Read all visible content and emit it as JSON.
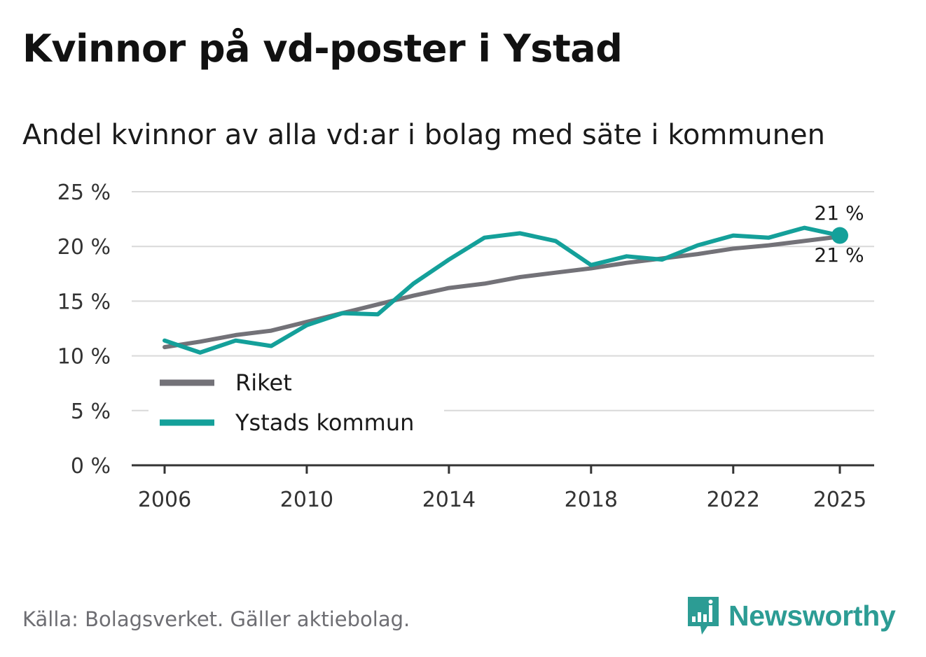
{
  "title": "Kvinnor på vd-poster i Ystad",
  "subtitle": "Andel kvinnor av alla vd:ar i bolag med säte i kommunen",
  "source": "Källa: Bolagsverket. Gäller aktiebolag.",
  "brand": {
    "name": "Newsworthy",
    "icon": "newsworthy-logo-icon"
  },
  "colors": {
    "riket": "#737278",
    "ystad": "#14a09a",
    "grid": "#d9d9d9",
    "axis": "#333333"
  },
  "chart_data": {
    "type": "line",
    "title": "Kvinnor på vd-poster i Ystad",
    "subtitle": "Andel kvinnor av alla vd:ar i bolag med säte i kommunen",
    "xlabel": "",
    "ylabel": "",
    "x": [
      2006,
      2007,
      2008,
      2009,
      2010,
      2011,
      2012,
      2013,
      2014,
      2015,
      2016,
      2017,
      2018,
      2019,
      2020,
      2021,
      2022,
      2023,
      2024,
      2025
    ],
    "xlim": [
      2006,
      2025
    ],
    "ylim": [
      0,
      25
    ],
    "x_ticks": [
      {
        "value": 2006,
        "label": "2006"
      },
      {
        "value": 2010,
        "label": "2010"
      },
      {
        "value": 2014,
        "label": "2014"
      },
      {
        "value": 2018,
        "label": "2018"
      },
      {
        "value": 2022,
        "label": "2022"
      },
      {
        "value": 2025,
        "label": "2025"
      }
    ],
    "y_ticks": [
      {
        "value": 0,
        "label": "0 %"
      },
      {
        "value": 5,
        "label": "5 %"
      },
      {
        "value": 10,
        "label": "10 %"
      },
      {
        "value": 15,
        "label": "15 %"
      },
      {
        "value": 20,
        "label": "20 %"
      },
      {
        "value": 25,
        "label": "25 %"
      }
    ],
    "grid": true,
    "legend_position": "bottom-left",
    "series": [
      {
        "key": "riket",
        "name": "Riket",
        "values": [
          10.8,
          11.3,
          11.9,
          12.3,
          13.1,
          13.9,
          14.7,
          15.5,
          16.2,
          16.6,
          17.2,
          17.6,
          18.0,
          18.5,
          18.9,
          19.3,
          19.8,
          20.1,
          20.5,
          20.9
        ],
        "end_label": "21 %"
      },
      {
        "key": "ystad",
        "name": "Ystads kommun",
        "values": [
          11.4,
          10.3,
          11.4,
          10.9,
          12.8,
          13.9,
          13.8,
          16.6,
          18.8,
          20.8,
          21.2,
          20.5,
          18.3,
          19.1,
          18.8,
          20.1,
          21.0,
          20.8,
          21.7,
          21.0
        ],
        "end_label": "21 %"
      }
    ]
  }
}
